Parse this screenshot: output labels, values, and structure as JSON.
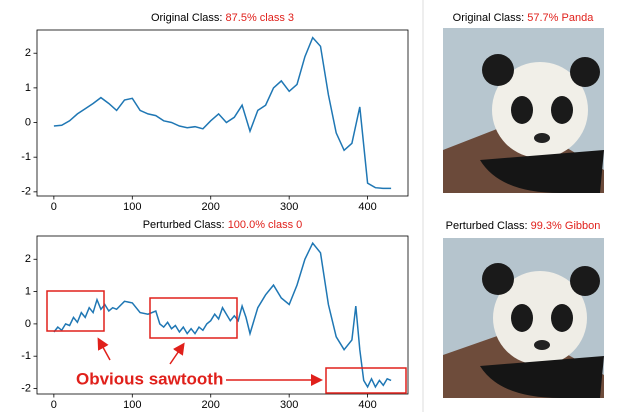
{
  "chart_data": [
    {
      "type": "line",
      "title": "Original Class:",
      "title_highlight": "87.5% class 3",
      "color": "#1f77b4",
      "x": [
        0,
        10,
        20,
        30,
        40,
        50,
        60,
        70,
        80,
        90,
        100,
        110,
        120,
        130,
        140,
        150,
        160,
        170,
        180,
        190,
        200,
        210,
        220,
        230,
        240,
        250,
        260,
        270,
        280,
        290,
        300,
        310,
        320,
        330,
        340,
        350,
        360,
        370,
        380,
        390,
        400,
        410,
        420,
        430
      ],
      "values": [
        -0.1,
        -0.08,
        0.05,
        0.25,
        0.4,
        0.55,
        0.72,
        0.55,
        0.35,
        0.65,
        0.7,
        0.35,
        0.25,
        0.2,
        0.05,
        0.0,
        -0.1,
        -0.15,
        -0.12,
        -0.18,
        0.05,
        0.25,
        0.0,
        0.15,
        0.5,
        -0.25,
        0.35,
        0.5,
        1.0,
        1.2,
        0.9,
        1.1,
        1.9,
        2.45,
        2.2,
        0.8,
        -0.3,
        -0.8,
        -0.6,
        0.45,
        -1.75,
        -1.88,
        -1.9,
        -1.9
      ],
      "xlim": [
        -21.5,
        451.5
      ],
      "xticks": [
        0,
        100,
        200,
        300,
        400
      ],
      "ylim": [
        -2.12,
        2.67
      ],
      "yticks": [
        -2,
        -1,
        0,
        1,
        2
      ]
    },
    {
      "type": "line",
      "title": "Perturbed Class:",
      "title_highlight": "100.0% class 0",
      "color": "#1f77b4",
      "annotation": "Obvious sawtooth",
      "x": [
        0,
        5,
        10,
        15,
        20,
        25,
        30,
        35,
        40,
        45,
        50,
        55,
        60,
        65,
        70,
        75,
        80,
        90,
        100,
        110,
        120,
        130,
        135,
        140,
        145,
        150,
        155,
        160,
        165,
        170,
        175,
        180,
        185,
        190,
        195,
        200,
        205,
        210,
        215,
        220,
        225,
        230,
        235,
        240,
        245,
        250,
        260,
        270,
        280,
        290,
        300,
        310,
        320,
        330,
        340,
        350,
        360,
        370,
        380,
        385,
        390,
        395,
        400,
        405,
        410,
        415,
        420,
        425,
        430
      ],
      "values": [
        -0.25,
        -0.1,
        -0.2,
        0.0,
        -0.05,
        0.2,
        0.05,
        0.35,
        0.2,
        0.5,
        0.35,
        0.75,
        0.45,
        0.6,
        0.4,
        0.5,
        0.45,
        0.7,
        0.65,
        0.35,
        0.3,
        0.4,
        0.0,
        -0.1,
        0.05,
        -0.15,
        -0.05,
        -0.25,
        -0.1,
        -0.3,
        -0.15,
        -0.3,
        -0.1,
        -0.2,
        0.0,
        0.1,
        0.3,
        0.15,
        0.5,
        0.3,
        0.1,
        0.25,
        0.1,
        0.55,
        0.2,
        -0.3,
        0.5,
        0.9,
        1.2,
        0.8,
        0.6,
        1.2,
        2.0,
        2.5,
        2.2,
        0.6,
        -0.4,
        -0.8,
        -0.5,
        0.55,
        -0.8,
        -1.75,
        -1.95,
        -1.7,
        -1.95,
        -1.75,
        -1.9,
        -1.7,
        -1.75
      ],
      "xlim": [
        -21.5,
        451.5
      ],
      "xticks": [
        0,
        100,
        200,
        300,
        400
      ],
      "ylim": [
        -2.17,
        2.72
      ],
      "yticks": [
        -2,
        -1,
        0,
        1,
        2
      ]
    }
  ],
  "images": [
    {
      "title": "Original Class:",
      "title_highlight": "57.7% Panda"
    },
    {
      "title": "Perturbed Class:",
      "title_highlight": "99.3% Gibbon"
    }
  ]
}
